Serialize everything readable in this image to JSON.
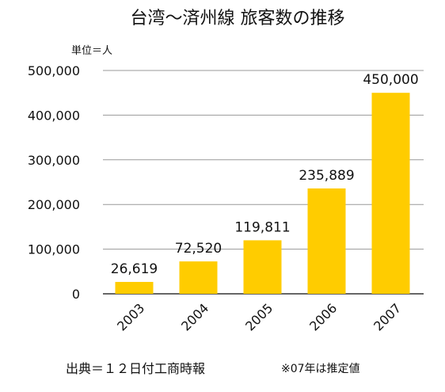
{
  "chart_data": {
    "type": "bar",
    "title": "台湾〜済州線 旅客数の推移",
    "unit_label": "単位＝人",
    "categories": [
      "2003",
      "2004",
      "2005",
      "2006",
      "2007"
    ],
    "values": [
      26619,
      72520,
      119811,
      235889,
      450000
    ],
    "value_labels": [
      "26,619",
      "72,520",
      "119,811",
      "235,889",
      "450,000"
    ],
    "ylim": [
      0,
      500000
    ],
    "yticks": [
      0,
      100000,
      200000,
      300000,
      400000,
      500000
    ],
    "ytick_labels": [
      "0",
      "100,000",
      "200,000",
      "300,000",
      "400,000",
      "500,000"
    ],
    "grid": true,
    "bar_color": "#FFCC00",
    "grid_color": "#999999"
  },
  "footer": {
    "source": "出典＝１２日付工商時報",
    "note": "※07年は推定値"
  }
}
